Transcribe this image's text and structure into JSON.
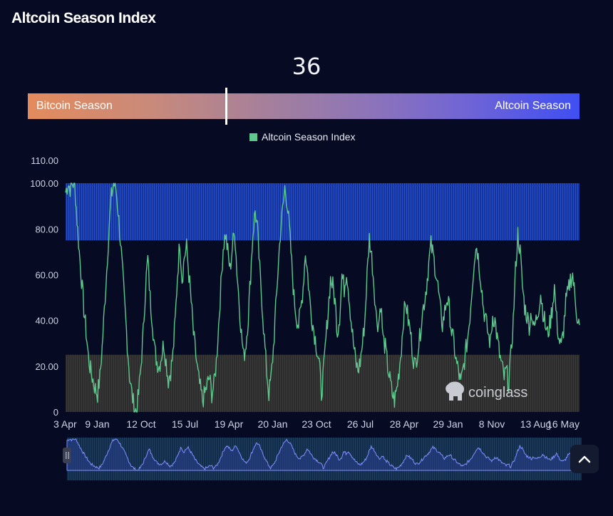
{
  "page": {
    "title": "Altcoin Season Index"
  },
  "gauge": {
    "value": "36",
    "value_num": 36,
    "left_label": "Bitcoin Season",
    "right_label": "Altcoin Season"
  },
  "legend": {
    "label": "Altcoin Season Index"
  },
  "colors": {
    "line": "#5ec98c",
    "altcoin_zone": "#1d3fb0",
    "bitcoin_zone": "#3a3a3a",
    "axis_text": "#cfd3e6"
  },
  "icons": {
    "watermark": "coinglass-logo",
    "scroll_top": "chevron-up-icon",
    "slider_handle": "pause-handle-icon"
  },
  "watermark": {
    "text": "coinglass"
  },
  "chart_data": {
    "type": "line",
    "series": [
      {
        "name": "Altcoin Season Index",
        "values": [
          96,
          100,
          98,
          100,
          100,
          84,
          70,
          58,
          45,
          35,
          24,
          18,
          14,
          10,
          8,
          15,
          28,
          45,
          62,
          80,
          94,
          100,
          98,
          88,
          75,
          60,
          45,
          30,
          16,
          8,
          2,
          0,
          8,
          20,
          35,
          55,
          67,
          50,
          40,
          27,
          22,
          20,
          25,
          30,
          22,
          14,
          18,
          25,
          40,
          60,
          75,
          58,
          68,
          72,
          60,
          48,
          34,
          25,
          16,
          10,
          5,
          8,
          12,
          15,
          8,
          12,
          22,
          38,
          55,
          72,
          78,
          70,
          62,
          72,
          80,
          62,
          48,
          34,
          24,
          30,
          42,
          60,
          78,
          88,
          80,
          62,
          48,
          32,
          18,
          8,
          15,
          28,
          45,
          62,
          78,
          88,
          98,
          92,
          80,
          65,
          50,
          42,
          38,
          45,
          55,
          70,
          60,
          48,
          40,
          34,
          28,
          22,
          8,
          18,
          32,
          45,
          58,
          55,
          48,
          35,
          42,
          60,
          54,
          62,
          52,
          40,
          30,
          22,
          18,
          22,
          30,
          40,
          60,
          76,
          68,
          56,
          42,
          38,
          48,
          32,
          28,
          20,
          14,
          8,
          5,
          10,
          18,
          28,
          42,
          48,
          40,
          35,
          25,
          20,
          26,
          32,
          42,
          48,
          55,
          65,
          73,
          68,
          62,
          55,
          45,
          38,
          44,
          50,
          45,
          35,
          30,
          22,
          18,
          12,
          18,
          25,
          32,
          42,
          55,
          68,
          73,
          65,
          56,
          45,
          40,
          34,
          30,
          42,
          40,
          32,
          25,
          20,
          15,
          18,
          12,
          25,
          40,
          62,
          78,
          70,
          55,
          46,
          42,
          38,
          44,
          36,
          40,
          45,
          52,
          44,
          38,
          34,
          38,
          45,
          55,
          40,
          32,
          28,
          36,
          48,
          52,
          58,
          60,
          50,
          42,
          38
        ]
      }
    ],
    "x_tick_labels": [
      "3 Apr",
      "9 Jan",
      "12 Oct",
      "15 Jul",
      "19 Apr",
      "20 Jan",
      "23 Oct",
      "26 Jul",
      "28 Apr",
      "29 Jan",
      "8 Nov",
      "13 Aug",
      "16 May"
    ],
    "y_tick_labels": [
      "0",
      "20.00",
      "40.00",
      "60.00",
      "80.00",
      "100.00",
      "110.00"
    ],
    "y_ticks": [
      0,
      20,
      40,
      60,
      80,
      100,
      110
    ],
    "ylim": [
      0,
      110
    ],
    "zones": [
      {
        "name": "altcoin-season-zone",
        "from": 75,
        "to": 100
      },
      {
        "name": "bitcoin-season-zone",
        "from": 0,
        "to": 25
      }
    ],
    "grid": false,
    "legend_position": "top-center"
  }
}
